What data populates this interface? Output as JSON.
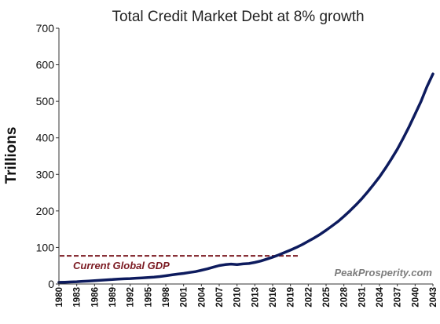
{
  "chart_data": {
    "type": "line",
    "title": "Total Credit Market Debt at 8% growth",
    "xlabel": "",
    "ylabel": "Trillions",
    "ylim": [
      0,
      700
    ],
    "yticks": [
      0,
      100,
      200,
      300,
      400,
      500,
      600,
      700
    ],
    "xlim": [
      1980,
      2043
    ],
    "xticks": [
      1980,
      1983,
      1986,
      1989,
      1992,
      1995,
      1998,
      2001,
      2004,
      2007,
      2010,
      2013,
      2016,
      2019,
      2022,
      2025,
      2028,
      2031,
      2034,
      2037,
      2040,
      2043
    ],
    "grid": false,
    "legend": "none",
    "series": [
      {
        "color": "#0d1b5e",
        "x": [
          1980,
          1981,
          1982,
          1983,
          1984,
          1985,
          1986,
          1987,
          1988,
          1989,
          1990,
          1991,
          1992,
          1993,
          1994,
          1995,
          1996,
          1997,
          1998,
          1999,
          2000,
          2001,
          2002,
          2003,
          2004,
          2005,
          2006,
          2007,
          2008,
          2009,
          2010,
          2011,
          2012,
          2013,
          2014,
          2015,
          2016,
          2017,
          2018,
          2019,
          2020,
          2021,
          2022,
          2023,
          2024,
          2025,
          2026,
          2027,
          2028,
          2029,
          2030,
          2031,
          2032,
          2033,
          2034,
          2035,
          2036,
          2037,
          2038,
          2039,
          2040,
          2041,
          2042,
          2043
        ],
        "values": [
          4.5,
          5,
          5.5,
          6.3,
          7.2,
          8.2,
          9.3,
          10.3,
          11.3,
          12.3,
          13.5,
          14.2,
          14.8,
          15.8,
          16.8,
          17.8,
          19,
          20.5,
          22.5,
          25,
          27,
          29,
          31.5,
          34,
          37.5,
          41.5,
          46,
          50.5,
          53,
          54.5,
          53,
          55,
          56,
          59,
          63,
          68,
          73.5,
          79.5,
          86,
          93,
          100,
          108,
          117,
          126,
          136,
          147,
          159,
          171,
          185,
          200,
          216,
          233,
          252,
          272,
          293,
          317,
          342,
          369,
          399,
          431,
          465,
          500,
          540,
          575
        ]
      }
    ],
    "annotations": [
      {
        "text": "Current Global GDP",
        "y": 77,
        "x_end": 2020.5,
        "style": "dashed",
        "color": "#7b1a22"
      }
    ],
    "watermark": "PeakProsperity.com"
  }
}
